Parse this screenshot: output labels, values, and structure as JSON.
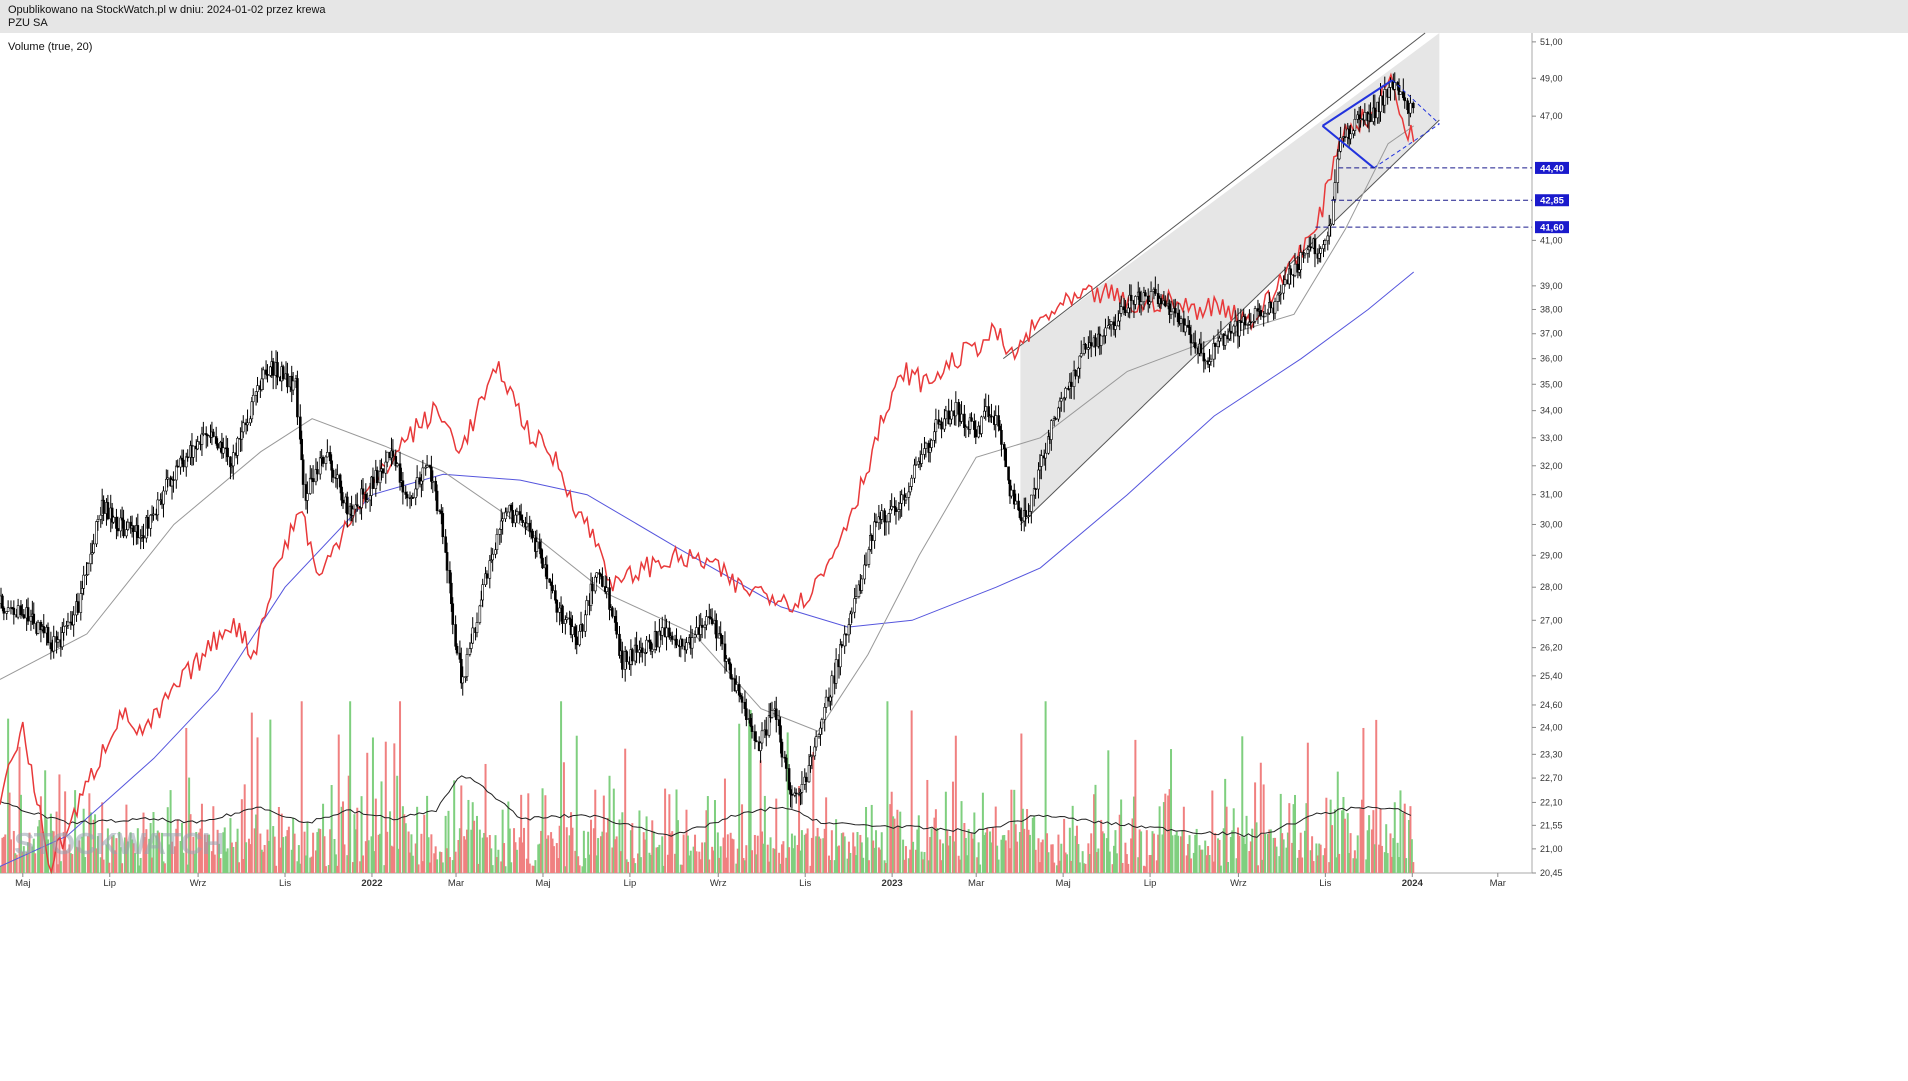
{
  "header": {
    "published": "Opublikowano na StockWatch.pl w dniu: 2024-01-02 przez krewa",
    "ticker": "PZU SA"
  },
  "indicator_label": "Volume (true, 20)",
  "watermark": "STOCKWATCH",
  "colors": {
    "up_volume": "#7fcf7f",
    "down_volume": "#f08080",
    "relative_line": "#e8393a",
    "ma_long": "#5555dd",
    "ma_short": "#999999",
    "pattern": "#2233dd",
    "channel_fill": "#e6e6e6",
    "level_badge": "#1a1acc"
  },
  "chart_data": {
    "type": "candlestick",
    "x_axis": {
      "labels": [
        "Maj",
        "Lip",
        "Wrz",
        "Lis",
        "2022",
        "Mar",
        "Maj",
        "Lip",
        "Wrz",
        "Lis",
        "2023",
        "Mar",
        "Maj",
        "Lip",
        "Wrz",
        "Lis",
        "2024",
        "Mar"
      ],
      "range": [
        "2021-04-15",
        "2024-03-25"
      ]
    },
    "y_axis": {
      "scale": "log",
      "range": [
        20.45,
        51.5
      ],
      "tick_labels": [
        "51,00",
        "49,00",
        "47,00",
        "41,00",
        "39,00",
        "38,00",
        "37,00",
        "36,00",
        "35,00",
        "34,00",
        "33,00",
        "32,00",
        "31,00",
        "30,00",
        "29,00",
        "28,00",
        "27,00",
        "26,20",
        "25,40",
        "24,60",
        "24,00",
        "23,30",
        "22,70",
        "22,10",
        "21,55",
        "21,00",
        "20,45"
      ],
      "tick_values": [
        51.0,
        49.0,
        47.0,
        41.0,
        39.0,
        38.0,
        37.0,
        36.0,
        35.0,
        34.0,
        33.0,
        32.0,
        31.0,
        30.0,
        29.0,
        28.0,
        27.0,
        26.2,
        25.4,
        24.6,
        24.0,
        23.3,
        22.7,
        22.1,
        21.55,
        21.0,
        20.45
      ]
    },
    "price_path": [
      [
        "2021-04-15",
        27.5
      ],
      [
        "2021-05-05",
        27.1
      ],
      [
        "2021-05-25",
        26.2
      ],
      [
        "2021-06-10",
        27.6
      ],
      [
        "2021-06-25",
        30.6
      ],
      [
        "2021-07-08",
        30.0
      ],
      [
        "2021-07-22",
        29.6
      ],
      [
        "2021-08-10",
        31.3
      ],
      [
        "2021-08-25",
        32.5
      ],
      [
        "2021-09-10",
        33.2
      ],
      [
        "2021-09-25",
        32.1
      ],
      [
        "2021-10-10",
        34.5
      ],
      [
        "2021-10-20",
        35.7
      ],
      [
        "2021-11-01",
        35.3
      ],
      [
        "2021-11-08",
        35.0
      ],
      [
        "2021-11-15",
        31.0
      ],
      [
        "2021-11-30",
        32.5
      ],
      [
        "2021-12-15",
        30.4
      ],
      [
        "2021-12-30",
        31.2
      ],
      [
        "2022-01-15",
        32.6
      ],
      [
        "2022-01-25",
        30.8
      ],
      [
        "2022-02-08",
        32.0
      ],
      [
        "2022-02-18",
        30.3
      ],
      [
        "2022-02-28",
        26.5
      ],
      [
        "2022-03-05",
        25.2
      ],
      [
        "2022-03-15",
        27.0
      ],
      [
        "2022-03-25",
        29.0
      ],
      [
        "2022-04-05",
        30.5
      ],
      [
        "2022-04-20",
        30.0
      ],
      [
        "2022-05-10",
        27.5
      ],
      [
        "2022-05-25",
        26.3
      ],
      [
        "2022-06-08",
        28.7
      ],
      [
        "2022-06-18",
        27.3
      ],
      [
        "2022-06-25",
        25.8
      ],
      [
        "2022-07-10",
        26.2
      ],
      [
        "2022-07-25",
        26.6
      ],
      [
        "2022-08-10",
        26.2
      ],
      [
        "2022-08-25",
        27.3
      ],
      [
        "2022-09-05",
        26.0
      ],
      [
        "2022-09-20",
        24.2
      ],
      [
        "2022-09-30",
        23.5
      ],
      [
        "2022-10-10",
        24.5
      ],
      [
        "2022-10-20",
        22.5
      ],
      [
        "2022-10-28",
        22.2
      ],
      [
        "2022-11-08",
        23.5
      ],
      [
        "2022-11-25",
        26.0
      ],
      [
        "2022-12-08",
        27.8
      ],
      [
        "2022-12-20",
        30.1
      ],
      [
        "2023-01-05",
        30.6
      ],
      [
        "2023-01-20",
        32.2
      ],
      [
        "2023-02-01",
        33.4
      ],
      [
        "2023-02-15",
        34.0
      ],
      [
        "2023-03-01",
        33.2
      ],
      [
        "2023-03-10",
        34.2
      ],
      [
        "2023-03-18",
        33.0
      ],
      [
        "2023-03-25",
        31.0
      ],
      [
        "2023-04-01",
        30.2
      ],
      [
        "2023-04-08",
        30.6
      ],
      [
        "2023-04-15",
        32.2
      ],
      [
        "2023-05-01",
        34.6
      ],
      [
        "2023-05-15",
        36.2
      ],
      [
        "2023-06-01",
        37.0
      ],
      [
        "2023-06-15",
        38.3
      ],
      [
        "2023-07-05",
        38.6
      ],
      [
        "2023-07-25",
        37.2
      ],
      [
        "2023-08-10",
        36.0
      ],
      [
        "2023-08-25",
        37.0
      ],
      [
        "2023-09-10",
        37.6
      ],
      [
        "2023-09-25",
        38.0
      ],
      [
        "2023-10-05",
        39.2
      ],
      [
        "2023-10-20",
        40.8
      ],
      [
        "2023-10-30",
        40.4
      ],
      [
        "2023-11-05",
        42.2
      ],
      [
        "2023-11-10",
        45.5
      ],
      [
        "2023-11-20",
        46.5
      ],
      [
        "2023-12-05",
        47.3
      ],
      [
        "2023-12-18",
        48.6
      ],
      [
        "2023-12-28",
        47.5
      ],
      [
        "2024-01-02",
        47.8
      ]
    ],
    "relative_line": [
      [
        "2021-04-15",
        22.3
      ],
      [
        "2021-05-01",
        24.0
      ],
      [
        "2021-05-20",
        20.6
      ],
      [
        "2021-06-10",
        22.1
      ],
      [
        "2021-06-25",
        23.3
      ],
      [
        "2021-07-08",
        24.4
      ],
      [
        "2021-07-25",
        23.8
      ],
      [
        "2021-08-15",
        25.0
      ],
      [
        "2021-09-05",
        26.0
      ],
      [
        "2021-09-25",
        27.0
      ],
      [
        "2021-10-10",
        26.0
      ],
      [
        "2021-10-25",
        28.5
      ],
      [
        "2021-11-12",
        30.6
      ],
      [
        "2021-11-25",
        28.2
      ],
      [
        "2021-12-15",
        30.2
      ],
      [
        "2022-01-05",
        31.5
      ],
      [
        "2022-01-25",
        33.0
      ],
      [
        "2022-02-15",
        34.0
      ],
      [
        "2022-03-05",
        32.6
      ],
      [
        "2022-03-20",
        34.5
      ],
      [
        "2022-04-01",
        35.6
      ],
      [
        "2022-04-20",
        33.3
      ],
      [
        "2022-05-10",
        32.2
      ],
      [
        "2022-05-25",
        30.5
      ],
      [
        "2022-06-08",
        29.4
      ],
      [
        "2022-06-20",
        28.0
      ],
      [
        "2022-07-10",
        28.6
      ],
      [
        "2022-08-01",
        28.9
      ],
      [
        "2022-08-25",
        28.8
      ],
      [
        "2022-09-15",
        28.0
      ],
      [
        "2022-10-10",
        27.8
      ],
      [
        "2022-10-28",
        27.5
      ],
      [
        "2022-11-15",
        28.5
      ],
      [
        "2022-12-08",
        31.0
      ],
      [
        "2022-12-25",
        33.6
      ],
      [
        "2023-01-10",
        35.5
      ],
      [
        "2023-01-25",
        35.0
      ],
      [
        "2023-02-15",
        36.0
      ],
      [
        "2023-03-01",
        36.5
      ],
      [
        "2023-03-15",
        37.1
      ],
      [
        "2023-03-25",
        36.0
      ],
      [
        "2023-04-10",
        37.2
      ],
      [
        "2023-04-25",
        38.0
      ],
      [
        "2023-05-15",
        38.5
      ],
      [
        "2023-06-01",
        38.7
      ],
      [
        "2023-06-20",
        38.1
      ],
      [
        "2023-07-10",
        38.4
      ],
      [
        "2023-07-30",
        38.0
      ],
      [
        "2023-08-20",
        38.2
      ],
      [
        "2023-09-10",
        37.5
      ],
      [
        "2023-09-25",
        38.6
      ],
      [
        "2023-10-10",
        40.3
      ],
      [
        "2023-10-25",
        41.3
      ],
      [
        "2023-11-03",
        43.6
      ],
      [
        "2023-11-10",
        45.8
      ],
      [
        "2023-11-20",
        46.6
      ],
      [
        "2023-12-05",
        47.0
      ],
      [
        "2023-12-18",
        49.3
      ],
      [
        "2023-12-25",
        46.5
      ],
      [
        "2024-01-02",
        46.2
      ]
    ],
    "ma_long": [
      [
        "2021-04-15",
        20.6
      ],
      [
        "2021-06-01",
        21.3
      ],
      [
        "2021-08-01",
        23.2
      ],
      [
        "2021-09-15",
        25.0
      ],
      [
        "2021-11-01",
        28.0
      ],
      [
        "2022-01-01",
        31.0
      ],
      [
        "2022-02-20",
        31.7
      ],
      [
        "2022-04-15",
        31.5
      ],
      [
        "2022-06-01",
        31.0
      ],
      [
        "2022-08-01",
        29.3
      ],
      [
        "2022-10-15",
        27.4
      ],
      [
        "2022-12-01",
        26.8
      ],
      [
        "2023-01-15",
        27.0
      ],
      [
        "2023-03-15",
        28.0
      ],
      [
        "2023-04-15",
        28.6
      ],
      [
        "2023-06-15",
        31.0
      ],
      [
        "2023-08-15",
        33.8
      ],
      [
        "2023-10-15",
        36.0
      ],
      [
        "2023-12-01",
        38.0
      ],
      [
        "2024-01-02",
        39.6
      ]
    ],
    "ma_short": [
      [
        "2021-04-15",
        25.3
      ],
      [
        "2021-06-15",
        26.6
      ],
      [
        "2021-08-15",
        30.0
      ],
      [
        "2021-10-15",
        32.5
      ],
      [
        "2021-11-20",
        33.7
      ],
      [
        "2022-01-10",
        32.7
      ],
      [
        "2022-02-20",
        31.8
      ],
      [
        "2022-04-15",
        30.0
      ],
      [
        "2022-06-15",
        27.8
      ],
      [
        "2022-08-15",
        26.6
      ],
      [
        "2022-10-01",
        24.5
      ],
      [
        "2022-11-10",
        23.9
      ],
      [
        "2022-12-15",
        26.0
      ],
      [
        "2023-01-20",
        29.0
      ],
      [
        "2023-03-01",
        32.3
      ],
      [
        "2023-04-15",
        33.0
      ],
      [
        "2023-06-15",
        35.5
      ],
      [
        "2023-08-15",
        36.8
      ],
      [
        "2023-10-10",
        37.8
      ],
      [
        "2023-11-15",
        41.5
      ],
      [
        "2023-12-15",
        45.6
      ],
      [
        "2024-01-02",
        46.5
      ]
    ],
    "volume_avg": [
      [
        "2021-04-15",
        22.1
      ],
      [
        "2021-06-01",
        21.6
      ],
      [
        "2021-08-01",
        21.7
      ],
      [
        "2021-09-01",
        21.6
      ],
      [
        "2021-10-15",
        22.0
      ],
      [
        "2021-11-15",
        21.6
      ],
      [
        "2021-12-15",
        21.9
      ],
      [
        "2022-01-15",
        21.7
      ],
      [
        "2022-02-15",
        21.9
      ],
      [
        "2022-03-05",
        22.8
      ],
      [
        "2022-03-20",
        22.5
      ],
      [
        "2022-04-15",
        21.7
      ],
      [
        "2022-06-01",
        21.8
      ],
      [
        "2022-08-01",
        21.3
      ],
      [
        "2022-09-15",
        21.8
      ],
      [
        "2022-10-15",
        22.0
      ],
      [
        "2022-11-15",
        21.6
      ],
      [
        "2023-01-15",
        21.5
      ],
      [
        "2023-03-01",
        21.4
      ],
      [
        "2023-04-15",
        21.8
      ],
      [
        "2023-06-01",
        21.6
      ],
      [
        "2023-08-01",
        21.4
      ],
      [
        "2023-09-15",
        21.3
      ],
      [
        "2023-10-25",
        21.8
      ],
      [
        "2023-11-25",
        22.0
      ],
      [
        "2023-12-25",
        21.9
      ],
      [
        "2024-01-02",
        21.7
      ]
    ],
    "channel": {
      "lower": [
        [
          "2023-04-01",
          30.0
        ],
        [
          "2024-01-20",
          46.8
        ]
      ],
      "upper": [
        [
          "2023-03-20",
          36.0
        ],
        [
          "2024-01-10",
          51.5
        ]
      ],
      "shade_end": "2024-01-20"
    },
    "pattern": {
      "solid": [
        [
          [
            "2023-10-30",
            46.5
          ],
          [
            "2023-12-18",
            48.9
          ]
        ],
        [
          [
            "2023-10-30",
            46.5
          ],
          [
            "2023-12-05",
            44.4
          ]
        ]
      ],
      "dashed": [
        [
          [
            "2023-12-18",
            48.9
          ],
          [
            "2024-01-20",
            46.6
          ]
        ],
        [
          [
            "2023-12-05",
            44.4
          ],
          [
            "2024-01-20",
            46.6
          ]
        ]
      ]
    },
    "levels": [
      {
        "value": 44.4,
        "label": "44,40",
        "from": "2023-11-10"
      },
      {
        "value": 42.85,
        "label": "42,85",
        "from": "2023-11-05"
      },
      {
        "value": 41.6,
        "label": "41,60",
        "from": "2023-10-25"
      }
    ]
  }
}
